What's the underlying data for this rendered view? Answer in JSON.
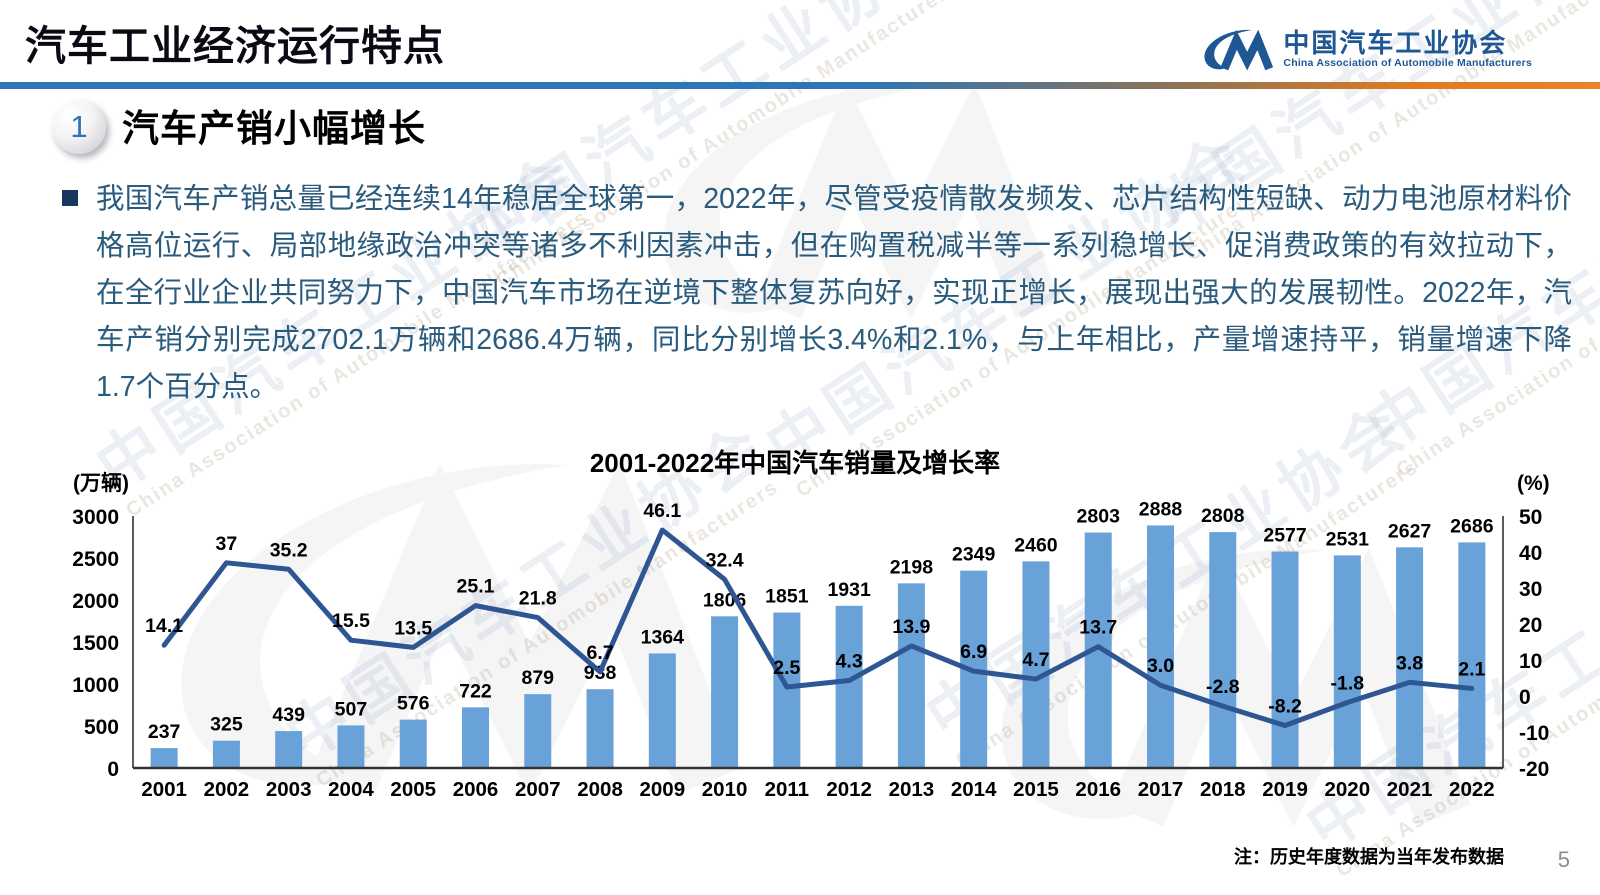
{
  "header": {
    "title": "汽车工业经济运行特点",
    "logo": {
      "cn": "中国汽车工业协会",
      "en": "China Association of Automobile Manufacturers"
    }
  },
  "section": {
    "number": "1",
    "title": "汽车产销小幅增长",
    "body": "我国汽车产销总量已经连续14年稳居全球第一，2022年，尽管受疫情散发频发、芯片结构性短缺、动力电池原材料价格高位运行、局部地缘政治冲突等诸多不利因素冲击，但在购置税减半等一系列稳增长、促消费政策的有效拉动下，在全行业企业共同努力下，中国汽车市场在逆境下整体复苏向好，实现正增长，展现出强大的发展韧性。2022年，汽车产销分别完成2702.1万辆和2686.4万辆，同比分别增长3.4%和2.1%，与上年相比，产量增速持平，销量增速下降1.7个百分点。"
  },
  "watermark": {
    "cn": "中国汽车工业协会",
    "en": "China Association of Automobile Manufacturers"
  },
  "chart_data": {
    "type": "bar",
    "subtype": "bar+line combo, dual axis",
    "title": "2001-2022年中国汽车销量及增长率",
    "grid": false,
    "legend": "none",
    "categories": [
      "2001",
      "2002",
      "2003",
      "2004",
      "2005",
      "2006",
      "2007",
      "2008",
      "2009",
      "2010",
      "2011",
      "2012",
      "2013",
      "2014",
      "2015",
      "2016",
      "2017",
      "2018",
      "2019",
      "2020",
      "2021",
      "2022"
    ],
    "series": [
      {
        "name": "汽车销量",
        "type": "bar",
        "axis": "left",
        "values": [
          237,
          325,
          439,
          507,
          576,
          722,
          879,
          938,
          1364,
          1806,
          1851,
          1931,
          2198,
          2349,
          2460,
          2803,
          2888,
          2808,
          2577,
          2531,
          2627,
          2686
        ]
      },
      {
        "name": "增长率",
        "type": "line",
        "axis": "right",
        "values": [
          14.1,
          37,
          35.2,
          15.5,
          13.5,
          25.1,
          21.8,
          6.7,
          46.1,
          32.4,
          2.5,
          4.3,
          13.9,
          6.9,
          4.7,
          13.7,
          3.0,
          -2.8,
          -8.2,
          -1.8,
          3.8,
          2.1
        ],
        "labels": [
          "14.1",
          "37",
          "35.2",
          "15.5",
          "13.5",
          "25.1",
          "21.8",
          "6.7",
          "46.1",
          "32.4",
          "2.5",
          "4.3",
          "13.9",
          "6.9",
          "4.7",
          "13.7",
          "3.0",
          "-2.8",
          "-8.2",
          "-1.8",
          "3.8",
          "2.1"
        ]
      }
    ],
    "left_axis": {
      "label": "(万辆)",
      "min": 0,
      "max": 3000,
      "ticks": [
        3000,
        2500,
        2000,
        1500,
        1000,
        500,
        0
      ]
    },
    "right_axis": {
      "label": "(%)",
      "min": -20,
      "max": 50,
      "ticks": [
        50,
        40,
        30,
        20,
        10,
        0,
        -10,
        -20
      ]
    },
    "colors": {
      "bar": "#68A2D8",
      "line": "#2E5693"
    }
  },
  "footer": {
    "note": "注：历史年度数据为当年发布数据",
    "page_number": "5"
  }
}
